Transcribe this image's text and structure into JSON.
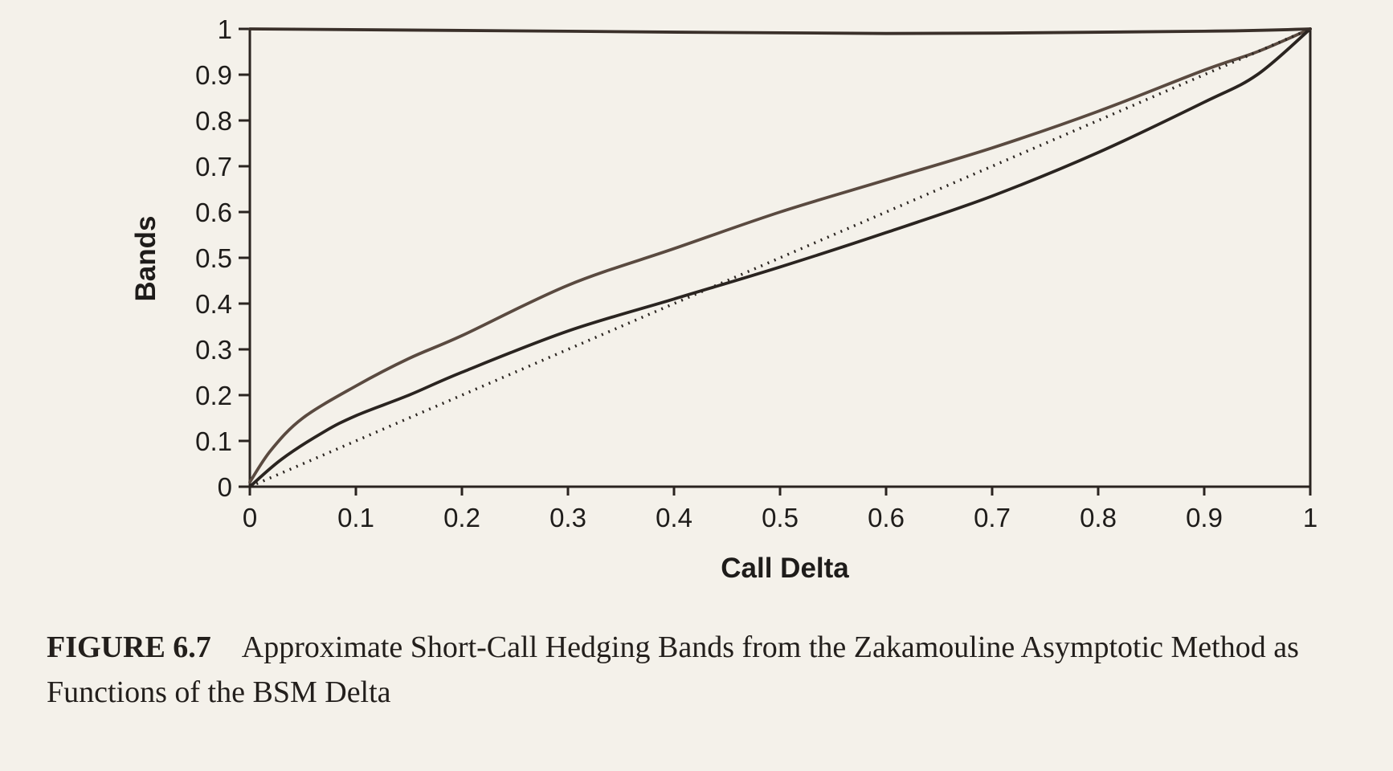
{
  "caption": {
    "label": "FIGURE 6.7",
    "text": "Approximate Short-Call Hedging Bands from the Zakamouline Asymptotic Method as Functions of the BSM Delta"
  },
  "chart_data": {
    "type": "line",
    "xlabel": "Call Delta",
    "ylabel": "Bands",
    "xlim": [
      0,
      1
    ],
    "ylim": [
      0,
      1
    ],
    "xticks": [
      "0",
      "0.1",
      "0.2",
      "0.3",
      "0.4",
      "0.5",
      "0.6",
      "0.7",
      "0.8",
      "0.9",
      "1"
    ],
    "yticks": [
      "0",
      "0.1",
      "0.2",
      "0.3",
      "0.4",
      "0.5",
      "0.6",
      "0.7",
      "0.8",
      "0.9",
      "1"
    ],
    "grid": false,
    "legend": "none",
    "series": [
      {
        "style": "solid",
        "color": "#5a4a40",
        "x": [
          0,
          0.02,
          0.05,
          0.1,
          0.15,
          0.2,
          0.3,
          0.4,
          0.5,
          0.6,
          0.7,
          0.8,
          0.9,
          0.95,
          1.0
        ],
        "y": [
          0.01,
          0.08,
          0.15,
          0.22,
          0.28,
          0.33,
          0.44,
          0.52,
          0.6,
          0.67,
          0.74,
          0.82,
          0.91,
          0.95,
          1.0
        ]
      },
      {
        "style": "solid",
        "color": "#2a2420",
        "x": [
          0,
          0.03,
          0.07,
          0.1,
          0.15,
          0.2,
          0.3,
          0.4,
          0.5,
          0.6,
          0.7,
          0.8,
          0.9,
          0.95,
          1.0
        ],
        "y": [
          0.0,
          0.06,
          0.12,
          0.155,
          0.2,
          0.25,
          0.34,
          0.41,
          0.48,
          0.555,
          0.635,
          0.73,
          0.84,
          0.9,
          1.0
        ]
      },
      {
        "style": "dotted",
        "color": "#2a2420",
        "x": [
          0,
          1
        ],
        "y": [
          0,
          1
        ]
      },
      {
        "style": "solid",
        "color": "#3a302a",
        "x": [
          0,
          0.3,
          0.6,
          0.9,
          1.0
        ],
        "y": [
          1.0,
          0.995,
          0.99,
          0.995,
          1.0
        ]
      }
    ]
  }
}
